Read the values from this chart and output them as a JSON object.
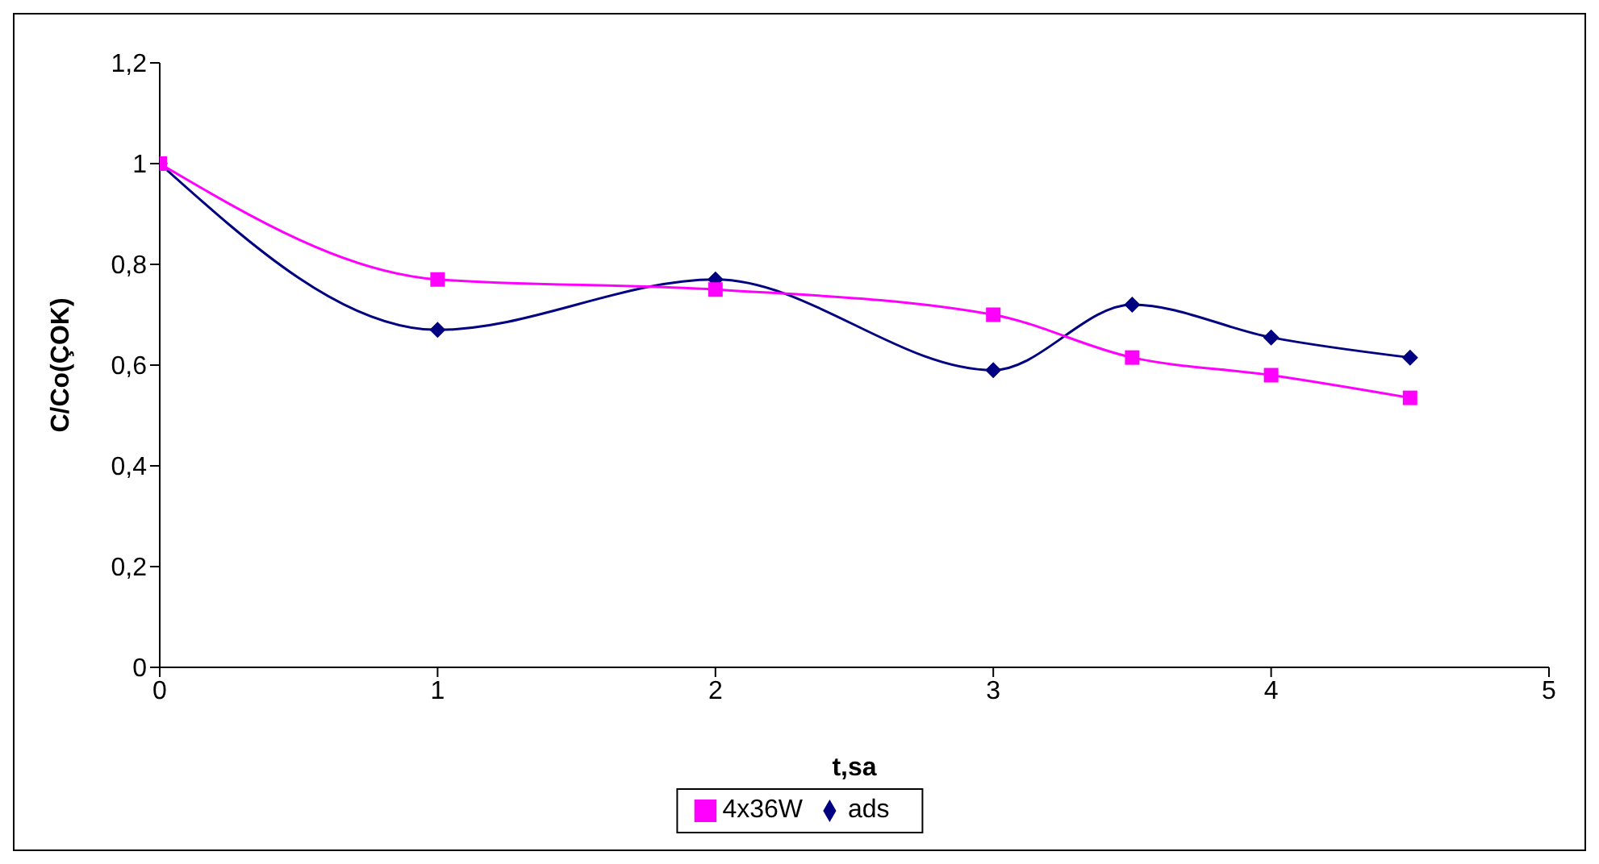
{
  "chart_data": {
    "type": "line",
    "xlabel": "t,sa",
    "ylabel": "C/Co(ÇOK)",
    "x": [
      0,
      1,
      2,
      3,
      3.5,
      4,
      4.5
    ],
    "series": [
      {
        "name": "ads",
        "color": "#000080",
        "marker": "diamond",
        "values": [
          1,
          0.67,
          0.77,
          0.59,
          0.72,
          0.655,
          0.615
        ]
      },
      {
        "name": "4x36W",
        "color": "#ff00ff",
        "marker": "square",
        "values": [
          1,
          0.77,
          0.75,
          0.7,
          0.615,
          0.58,
          0.535
        ]
      }
    ],
    "xlim": [
      0,
      5
    ],
    "xticks": [
      0,
      1,
      2,
      3,
      4,
      5
    ],
    "ylim": [
      0,
      1.2
    ],
    "yticks": [
      0,
      {
        "value": 0.2,
        "label": "0,2"
      },
      {
        "value": 0.4,
        "label": "0,4"
      },
      {
        "value": 0.6,
        "label": "0,6"
      },
      {
        "value": 0.8,
        "label": "0,8"
      },
      1,
      {
        "value": 1.2,
        "label": "1,2"
      }
    ],
    "grid": false,
    "legend": "bottom",
    "line_style": "solid"
  }
}
